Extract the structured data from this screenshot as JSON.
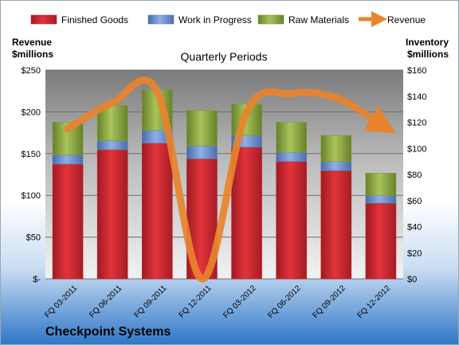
{
  "chart_data": {
    "type": "bar",
    "title": "Quarterly Periods",
    "company": "Checkpoint Systems",
    "ylabel_left": [
      "Revenue",
      "$millions"
    ],
    "ylabel_right": [
      "Inventory",
      "$millions"
    ],
    "categories": [
      "FQ 03-2011",
      "FQ 06-2011",
      "FQ 09-2011",
      "FQ 12-2011",
      "FQ 03-2012",
      "FQ 06-2012",
      "FQ 09-2012",
      "FQ 12-2012"
    ],
    "series": [
      {
        "name": "Finished Goods",
        "axis": "right",
        "kind": "stacked-bar",
        "color": "#c8202a",
        "values": [
          88,
          99,
          104,
          92,
          101,
          90,
          83,
          58
        ]
      },
      {
        "name": "Work in Progress",
        "axis": "right",
        "kind": "stacked-bar",
        "color": "#5d7fc0",
        "values": [
          7,
          7,
          10,
          10,
          9,
          7,
          7,
          6
        ]
      },
      {
        "name": "Raw Materials",
        "axis": "right",
        "kind": "stacked-bar",
        "color": "#7e9a35",
        "values": [
          25,
          27,
          31,
          27,
          24,
          23,
          20,
          17
        ]
      },
      {
        "name": "Revenue",
        "axis": "left",
        "kind": "line-arrow",
        "color": "#e8832e",
        "values": [
          180,
          211,
          224,
          0,
          200,
          222,
          217,
          185
        ]
      }
    ],
    "y_left": {
      "min": 0,
      "max": 250,
      "ticks": [
        0,
        50,
        100,
        150,
        200,
        250
      ],
      "labels": [
        "$-",
        "$50",
        "$100",
        "$150",
        "$200",
        "$250"
      ]
    },
    "y_right": {
      "min": 0,
      "max": 160,
      "ticks": [
        0,
        20,
        40,
        60,
        80,
        100,
        120,
        140,
        160
      ],
      "labels": [
        "$0",
        "$20",
        "$40",
        "$60",
        "$80",
        "$100",
        "$120",
        "$140",
        "$160"
      ]
    },
    "legend_position": "top",
    "grid": true
  }
}
